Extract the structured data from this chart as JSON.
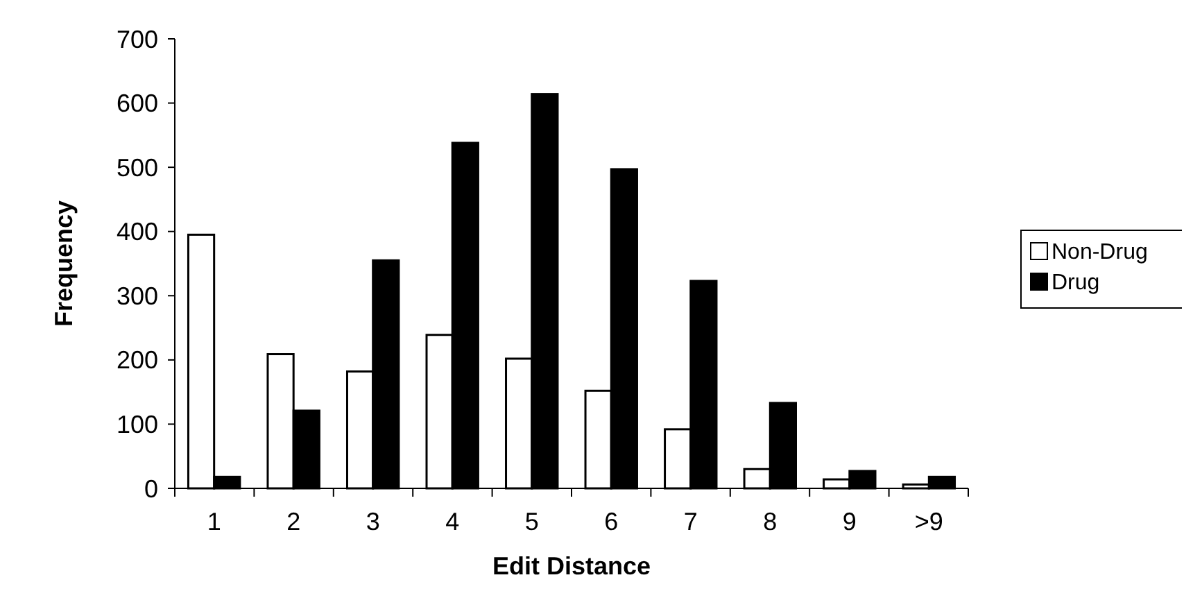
{
  "chart_data": {
    "type": "bar",
    "xlabel": "Edit Distance",
    "ylabel": "Frequency",
    "categories": [
      "1",
      "2",
      "3",
      "4",
      "5",
      "6",
      "7",
      "8",
      "9",
      ">9"
    ],
    "series": [
      {
        "name": "Non-Drug",
        "color": "#ffffff",
        "values": [
          395,
          209,
          182,
          239,
          202,
          152,
          92,
          30,
          14,
          6
        ]
      },
      {
        "name": "Drug",
        "color": "#000000",
        "values": [
          18,
          121,
          355,
          538,
          614,
          497,
          323,
          133,
          27,
          18
        ]
      }
    ],
    "ylim": [
      0,
      700
    ],
    "yticks": [
      0,
      100,
      200,
      300,
      400,
      500,
      600,
      700
    ],
    "grid": false,
    "legend": "right"
  }
}
